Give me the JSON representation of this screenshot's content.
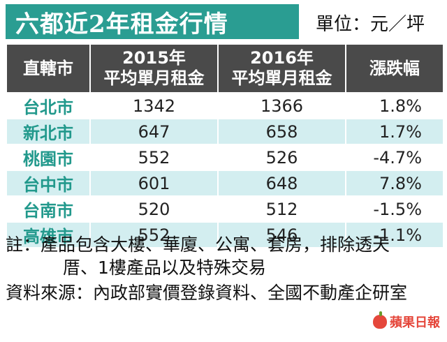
{
  "header": {
    "title": "六都近2年租金行情",
    "unit": "單位：元／坪"
  },
  "chart_data": {
    "type": "table",
    "columns": [
      {
        "line1": "直轄市",
        "line2": ""
      },
      {
        "line1": "2015年",
        "line2": "平均單月租金"
      },
      {
        "line1": "2016年",
        "line2": "平均單月租金"
      },
      {
        "line1": "漲跌幅",
        "line2": ""
      }
    ],
    "rows": [
      {
        "city": "台北市",
        "y2015": "1342",
        "y2016": "1366",
        "change": "1.8%"
      },
      {
        "city": "新北市",
        "y2015": "647",
        "y2016": "658",
        "change": "1.7%"
      },
      {
        "city": "桃園市",
        "y2015": "552",
        "y2016": "526",
        "change": "-4.7%"
      },
      {
        "city": "台中市",
        "y2015": "601",
        "y2016": "648",
        "change": "7.8%"
      },
      {
        "city": "台南市",
        "y2015": "520",
        "y2016": "512",
        "change": "-1.5%"
      },
      {
        "city": "高雄市",
        "y2015": "552",
        "y2016": "546",
        "change": "-1.1%"
      }
    ]
  },
  "footer": {
    "note_line1": "註：產品包含大樓、華廈、公寓、套房，排除透天",
    "note_line2": "厝、1樓產品以及特殊交易",
    "source": "資料來源：內政部實價登錄資料、全國不動產企研室",
    "brand": "蘋果日報"
  },
  "colors": {
    "title_bg": "#2a9d92",
    "header_bg": "#4a4a4a",
    "row_alt_bg": "#d3eef0",
    "city_text": "#22998c",
    "brand": "#e5473b"
  },
  "icons": {
    "brand_logo": "apple-icon"
  }
}
